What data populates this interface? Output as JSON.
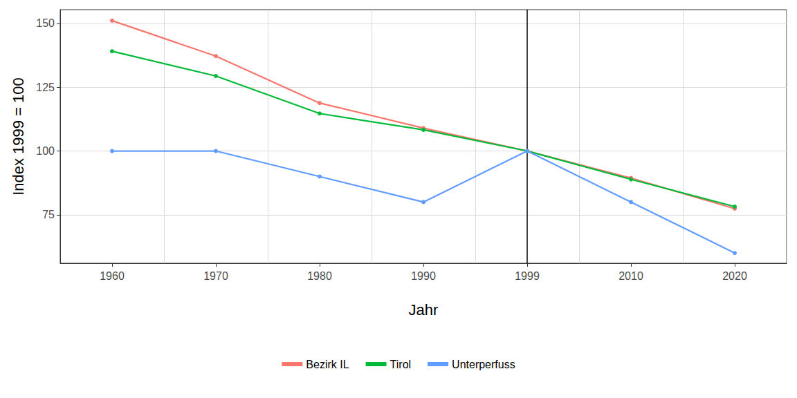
{
  "chart_data": {
    "type": "line",
    "x_label": "Jahr",
    "y_label": "Index 1999 = 100",
    "categories": [
      "1960",
      "1970",
      "1980",
      "1990",
      "1999",
      "2010",
      "2020"
    ],
    "series": [
      {
        "name": "Bezirk IL",
        "color": "#F8766D",
        "marker": "circle",
        "values": [
          151.1,
          137.2,
          118.8,
          109.0,
          100,
          89.4,
          77.4
        ]
      },
      {
        "name": "Tirol",
        "color": "#00BA38",
        "marker": "circle",
        "values": [
          139.1,
          129.4,
          114.7,
          108.3,
          100,
          88.9,
          78.2
        ]
      },
      {
        "name": "Unterperfuss",
        "color": "#619CFF",
        "marker": "circle",
        "values": [
          100,
          100,
          90,
          80,
          100,
          80,
          60
        ]
      }
    ],
    "vline": "1999",
    "ylim": [
      56,
      155.4
    ],
    "yticks": [
      75,
      100,
      125,
      150
    ],
    "grid": true,
    "legend": "bottom"
  }
}
